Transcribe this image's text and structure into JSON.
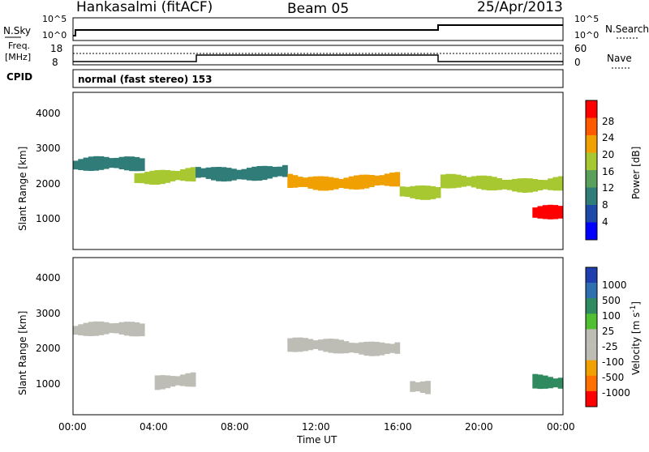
{
  "header": {
    "station": "Hankasalmi (fitACF)",
    "beam": "Beam 05",
    "date": "25/Apr/2013"
  },
  "noise_panel": {
    "left_label": "N.Sky",
    "right_label": "N.Search",
    "left_ticks": [
      "10^5",
      "10^0"
    ],
    "right_ticks": [
      "10^5",
      "10^0"
    ]
  },
  "freq_panel": {
    "left_label_line1": "Freq.",
    "left_label_line2": "[MHz]",
    "left_ticks": [
      "18",
      "8"
    ],
    "right_ticks": [
      "60",
      "0"
    ],
    "right_label": "Nave",
    "cpid_label": "CPID",
    "cpid_text": "normal (fast stereo) 153"
  },
  "power_panel": {
    "ylabel": "Slant Range [km]",
    "yticks": [
      "4000",
      "3000",
      "2000",
      "1000"
    ],
    "colorbar_label": "Power [dB]",
    "colorbar_ticks": [
      "28",
      "24",
      "20",
      "16",
      "12",
      "8",
      "4"
    ],
    "colors": [
      "#0000ff",
      "#1f49a8",
      "#2f7c78",
      "#5aa05a",
      "#a8c832",
      "#f0a000",
      "#ff5a00",
      "#ff0000"
    ]
  },
  "velocity_panel": {
    "ylabel": "Slant Range [km]",
    "yticks": [
      "4000",
      "3000",
      "2000",
      "1000"
    ],
    "colorbar_label": "Velocity [m s",
    "colorbar_label_sup": "-1",
    "colorbar_label_end": "]",
    "colorbar_ticks": [
      "1000",
      "500",
      "100",
      "25",
      "-25",
      "-100",
      "-500",
      "-1000"
    ],
    "colors": [
      "#1f3fae",
      "#2e6fb0",
      "#2f8a60",
      "#50c030",
      "#bdbdb5",
      "#bdbdb5",
      "#f0a000",
      "#ff7000",
      "#ff0000"
    ]
  },
  "time_axis": {
    "ticks": [
      "00:00",
      "04:00",
      "08:00",
      "12:00",
      "16:00",
      "20:00",
      "00:00"
    ],
    "label": "Time UT"
  },
  "chart_data": {
    "type": "heatmap",
    "title": "Hankasalmi (fitACF)",
    "x_label": "Time UT",
    "y_label": "Slant Range [km]",
    "x_range_hours": [
      0,
      24
    ],
    "y_range_km": [
      180,
      4500
    ],
    "power_db": {
      "colorbar_range": [
        0,
        30
      ],
      "bands": [
        {
          "time_start": 0.0,
          "time_end": 3.5,
          "range_center": 2500,
          "value": 10
        },
        {
          "time_start": 3.0,
          "time_end": 6.0,
          "range_center": 2200,
          "value": 16
        },
        {
          "time_start": 6.0,
          "time_end": 10.5,
          "range_center": 2300,
          "value": 8
        },
        {
          "time_start": 10.5,
          "time_end": 16.0,
          "range_center": 2050,
          "value": 22
        },
        {
          "time_start": 16.0,
          "time_end": 18.0,
          "range_center": 1800,
          "value": 18
        },
        {
          "time_start": 18.0,
          "time_end": 24.0,
          "range_center": 2000,
          "value": 18
        },
        {
          "time_start": 22.5,
          "time_end": 24.0,
          "range_center": 1150,
          "value": 28
        }
      ]
    },
    "velocity_ms": {
      "colorbar_range": [
        -1000,
        1000
      ],
      "bands": [
        {
          "time_start": 0.0,
          "time_end": 3.5,
          "range_center": 2500,
          "value": 0
        },
        {
          "time_start": 4.0,
          "time_end": 6.0,
          "range_center": 1100,
          "value": -100
        },
        {
          "time_start": 10.5,
          "time_end": 16.0,
          "range_center": 2050,
          "value": 0
        },
        {
          "time_start": 16.5,
          "time_end": 17.5,
          "range_center": 900,
          "value": -300
        },
        {
          "time_start": 22.5,
          "time_end": 24.0,
          "range_center": 1100,
          "value": 400
        }
      ]
    }
  }
}
